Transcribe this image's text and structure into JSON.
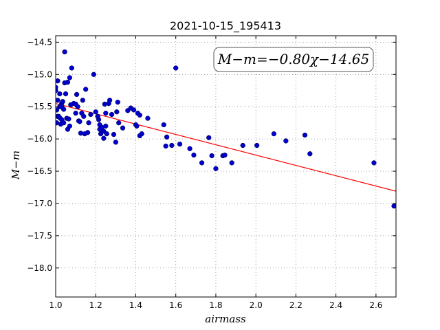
{
  "chart_data": {
    "type": "scatter",
    "title": "2021-10-15_195413",
    "xlabel": "airmass",
    "ylabel": "M−m",
    "xlim": [
      1.0,
      2.7
    ],
    "ylim": [
      -18.45,
      -14.4
    ],
    "y_inverted": true,
    "grid": true,
    "x_ticks": [
      1.0,
      1.2,
      1.4,
      1.6,
      1.8,
      2.0,
      2.2,
      2.4,
      2.6
    ],
    "x_tick_labels": [
      "1.0",
      "1.2",
      "1.4",
      "1.6",
      "1.8",
      "2.0",
      "2.2",
      "2.4",
      "2.6"
    ],
    "y_ticks": [
      -14.5,
      -15.0,
      -15.5,
      -16.0,
      -16.5,
      -17.0,
      -17.5,
      -18.0
    ],
    "y_tick_labels": [
      "−14.5",
      "−15.0",
      "−15.5",
      "−16.0",
      "−16.5",
      "−17.0",
      "−17.5",
      "−18.0"
    ],
    "annotation": "M−m=−0.80χ−14.65",
    "fit": {
      "slope": -0.8,
      "intercept": -14.65,
      "x_range": [
        1.0,
        2.7
      ],
      "color": "#ff0000"
    },
    "marker_color": "#0000cc",
    "points": [
      [
        1.0,
        -15.2
      ],
      [
        1.0,
        -15.25
      ],
      [
        1.005,
        -15.55
      ],
      [
        1.005,
        -15.75
      ],
      [
        1.01,
        -15.1
      ],
      [
        1.01,
        -15.4
      ],
      [
        1.01,
        -15.65
      ],
      [
        1.015,
        -15.65
      ],
      [
        1.02,
        -15.3
      ],
      [
        1.02,
        -15.5
      ],
      [
        1.02,
        -15.67
      ],
      [
        1.025,
        -15.77
      ],
      [
        1.03,
        -15.45
      ],
      [
        1.03,
        -15.5
      ],
      [
        1.03,
        -15.7
      ],
      [
        1.035,
        -15.42
      ],
      [
        1.04,
        -15.54
      ],
      [
        1.04,
        -15.75
      ],
      [
        1.045,
        -14.65
      ],
      [
        1.045,
        -15.13
      ],
      [
        1.05,
        -15.3
      ],
      [
        1.055,
        -15.68
      ],
      [
        1.06,
        -15.12
      ],
      [
        1.06,
        -15.85
      ],
      [
        1.065,
        -15.69
      ],
      [
        1.07,
        -15.05
      ],
      [
        1.07,
        -15.8
      ],
      [
        1.075,
        -15.47
      ],
      [
        1.08,
        -14.9
      ],
      [
        1.09,
        -15.45
      ],
      [
        1.1,
        -15.46
      ],
      [
        1.1,
        -15.6
      ],
      [
        1.105,
        -15.31
      ],
      [
        1.11,
        -15.5
      ],
      [
        1.115,
        -15.72
      ],
      [
        1.12,
        -15.73
      ],
      [
        1.125,
        -15.91
      ],
      [
        1.13,
        -15.6
      ],
      [
        1.135,
        -15.4
      ],
      [
        1.14,
        -15.65
      ],
      [
        1.145,
        -15.92
      ],
      [
        1.15,
        -15.23
      ],
      [
        1.16,
        -15.9
      ],
      [
        1.165,
        -15.75
      ],
      [
        1.175,
        -15.62
      ],
      [
        1.19,
        -15.0
      ],
      [
        1.2,
        -15.58
      ],
      [
        1.21,
        -15.65
      ],
      [
        1.215,
        -15.7
      ],
      [
        1.22,
        -15.78
      ],
      [
        1.22,
        -15.85
      ],
      [
        1.225,
        -15.92
      ],
      [
        1.23,
        -15.82
      ],
      [
        1.24,
        -15.88
      ],
      [
        1.24,
        -15.99
      ],
      [
        1.245,
        -15.46
      ],
      [
        1.25,
        -15.6
      ],
      [
        1.25,
        -15.8
      ],
      [
        1.255,
        -15.92
      ],
      [
        1.265,
        -15.45
      ],
      [
        1.27,
        -15.4
      ],
      [
        1.28,
        -15.62
      ],
      [
        1.29,
        -15.93
      ],
      [
        1.3,
        -16.05
      ],
      [
        1.305,
        -15.58
      ],
      [
        1.31,
        -15.43
      ],
      [
        1.315,
        -15.75
      ],
      [
        1.335,
        -15.83
      ],
      [
        1.36,
        -15.56
      ],
      [
        1.375,
        -15.52
      ],
      [
        1.39,
        -15.55
      ],
      [
        1.4,
        -15.78
      ],
      [
        1.405,
        -15.8
      ],
      [
        1.41,
        -15.6
      ],
      [
        1.42,
        -15.63
      ],
      [
        1.42,
        -15.95
      ],
      [
        1.43,
        -15.92
      ],
      [
        1.46,
        -15.68
      ],
      [
        1.54,
        -15.78
      ],
      [
        1.55,
        -16.11
      ],
      [
        1.555,
        -15.97
      ],
      [
        1.58,
        -16.1
      ],
      [
        1.6,
        -14.9
      ],
      [
        1.62,
        -16.08
      ],
      [
        1.67,
        -16.15
      ],
      [
        1.69,
        -16.25
      ],
      [
        1.73,
        -16.37
      ],
      [
        1.765,
        -15.98
      ],
      [
        1.78,
        -16.26
      ],
      [
        1.8,
        -16.46
      ],
      [
        1.835,
        -16.26
      ],
      [
        1.845,
        -16.25
      ],
      [
        1.88,
        -16.37
      ],
      [
        1.935,
        -16.1
      ],
      [
        2.005,
        -16.1
      ],
      [
        2.09,
        -15.92
      ],
      [
        2.15,
        -16.03
      ],
      [
        2.245,
        -15.94
      ],
      [
        2.27,
        -16.23
      ],
      [
        2.59,
        -16.37
      ],
      [
        2.69,
        -17.04
      ]
    ]
  }
}
